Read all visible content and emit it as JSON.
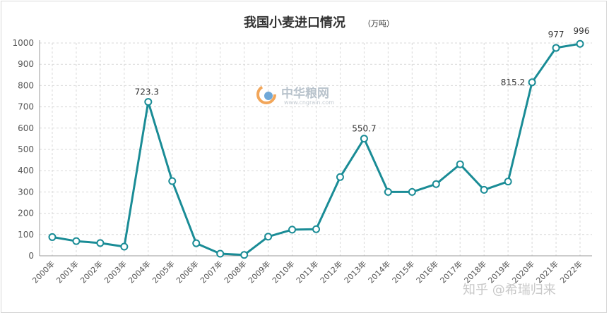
{
  "chart_data": {
    "type": "line",
    "title": "我国小麦进口情况",
    "unit": "（万吨）",
    "categories": [
      "2000年",
      "2001年",
      "2002年",
      "2003年",
      "2004年",
      "2005年",
      "2006年",
      "2007年",
      "2008年",
      "2009年",
      "2010年",
      "2011年",
      "2012年",
      "2013年",
      "2014年",
      "2015年",
      "2016年",
      "2017年",
      "2018年",
      "2019年",
      "2020年",
      "2021年",
      "2022年"
    ],
    "series": [
      {
        "values": [
          88,
          69,
          60,
          43,
          723.3,
          351,
          59,
          10,
          4,
          90,
          123,
          125,
          370,
          550.7,
          300,
          300,
          337,
          430,
          310,
          349,
          815.2,
          977,
          996
        ]
      }
    ],
    "data_labels": [
      {
        "index": 4,
        "text": "723.3"
      },
      {
        "index": 13,
        "text": "550.7"
      },
      {
        "index": 20,
        "text": "815.2"
      },
      {
        "index": 21,
        "text": "977"
      },
      {
        "index": 22,
        "text": "996"
      }
    ],
    "ylim": [
      0,
      1000
    ],
    "yticks": [
      0,
      100,
      200,
      300,
      400,
      500,
      600,
      700,
      800,
      900,
      1000
    ],
    "grid": true,
    "line_color": "#1a8c96"
  },
  "watermark": {
    "brand": "中华粮网",
    "url": "www.cngrain.com",
    "logo_letter": "G"
  },
  "credit": "知乎 @希瑞归来"
}
